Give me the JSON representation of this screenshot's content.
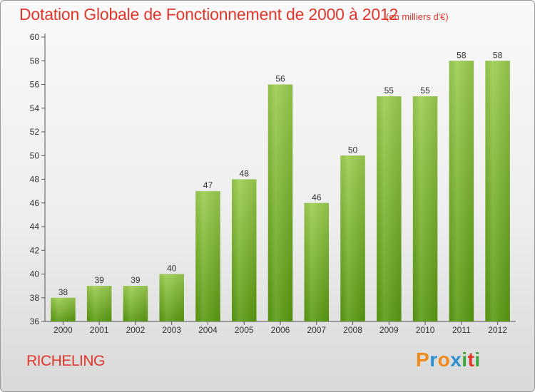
{
  "header": {
    "title": "Dotation Globale de Fonctionnement de 2000 à 2012",
    "subtitle": "(en milliers d'€)"
  },
  "footer": {
    "commune": "RICHELING"
  },
  "logo": {
    "letters": [
      "P",
      "r",
      "o",
      "x",
      "i",
      "t",
      "i"
    ],
    "colors": [
      "#f08a1c",
      "#2f8fce",
      "#f08a1c",
      "#2f8fce",
      "#3aa83a",
      "#e0362c",
      "#3aa83a"
    ]
  },
  "colors": {
    "title": "#e0362c",
    "bar_light": "#9ccd50",
    "bar_dark": "#5a9a12"
  },
  "chart_data": {
    "type": "bar",
    "categories": [
      "2000",
      "2001",
      "2002",
      "2003",
      "2004",
      "2005",
      "2006",
      "2007",
      "2008",
      "2009",
      "2010",
      "2011",
      "2012"
    ],
    "values": [
      38,
      39,
      39,
      40,
      47,
      48,
      56,
      46,
      50,
      55,
      55,
      58,
      58
    ],
    "ylim": [
      36,
      60
    ],
    "yticks": [
      36,
      38,
      40,
      42,
      44,
      46,
      48,
      50,
      52,
      54,
      56,
      58,
      60
    ],
    "grid": false,
    "legend": "none"
  }
}
